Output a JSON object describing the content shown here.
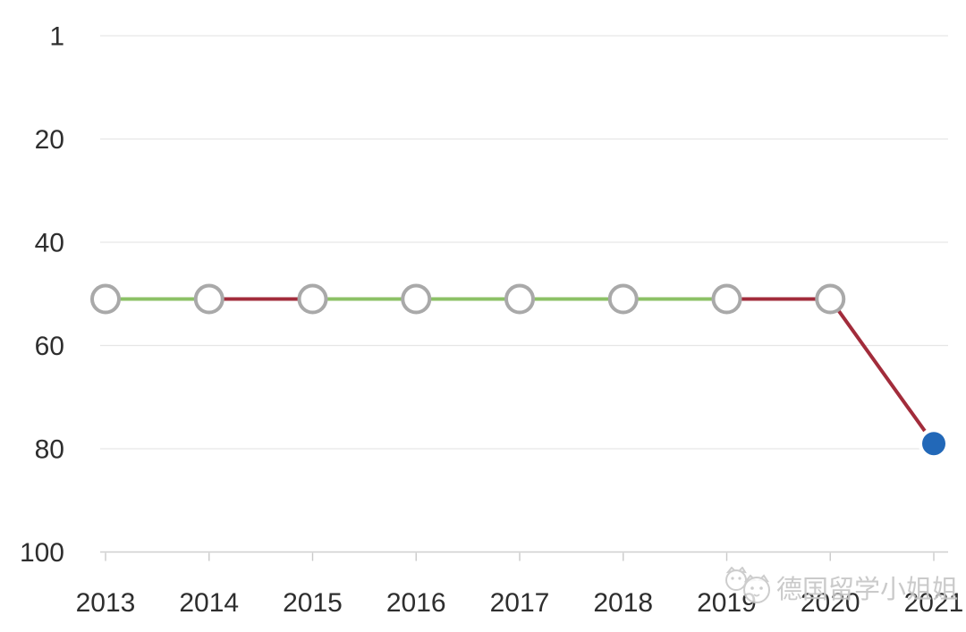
{
  "watermark": {
    "text": "德国留学小姐姐",
    "logo_icon": "two-cats-logo"
  },
  "chart_data": {
    "type": "line",
    "title": "",
    "xlabel": "",
    "ylabel": "",
    "x_categories": [
      "2013",
      "2014",
      "2015",
      "2016",
      "2017",
      "2018",
      "2019",
      "2020",
      "2021"
    ],
    "values": [
      51,
      51,
      51,
      51,
      51,
      51,
      51,
      51,
      79
    ],
    "segment_colors": [
      "green",
      "red",
      "green",
      "green",
      "green",
      "green",
      "red",
      "red"
    ],
    "marker_styles": [
      "open",
      "open",
      "open",
      "open",
      "open",
      "open",
      "open",
      "open",
      "filled-blue"
    ],
    "y_tick_labels": [
      "1",
      "20",
      "40",
      "60",
      "80",
      "100"
    ],
    "y_tick_positions": [
      0,
      20,
      40,
      60,
      80,
      100
    ],
    "y_axis": {
      "inverted": true,
      "range_top_label": "1",
      "range_bottom_label": "100"
    },
    "grid": true,
    "legend": null,
    "colors": {
      "green": "#8cc166",
      "red": "#a22c3b",
      "blue": "#2268b8",
      "marker_stroke": "#a9a9a9",
      "marker_fill": "#ffffff",
      "gridline": "#e6e6e6",
      "axis_line": "#cfcfcf",
      "tick_mark": "#c9c9c9",
      "label": "#2e2e2e",
      "watermark": "#c6c6c6"
    }
  }
}
